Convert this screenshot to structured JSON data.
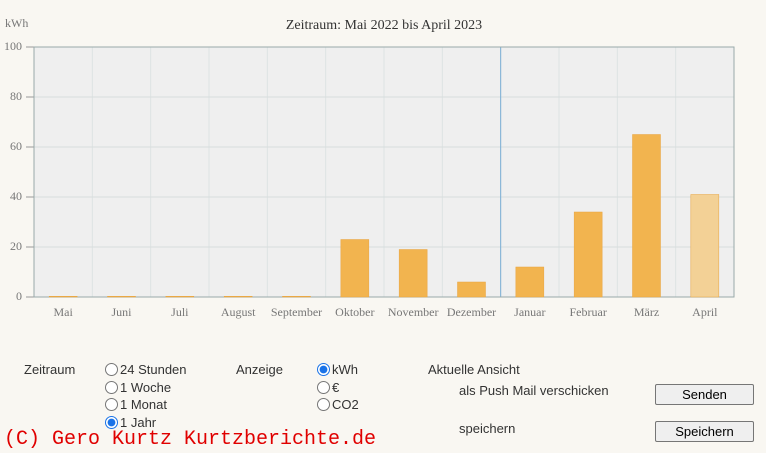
{
  "chart_data": {
    "type": "bar",
    "title": "Zeitraum: Mai 2022 bis April 2023",
    "y_label": "kWh",
    "categories": [
      "Mai",
      "Juni",
      "Juli",
      "August",
      "September",
      "Oktober",
      "November",
      "Dezember",
      "Januar",
      "Februar",
      "März",
      "April"
    ],
    "values": [
      0.3,
      0.3,
      0.3,
      0.3,
      0.3,
      23,
      19,
      6,
      12,
      34,
      65,
      41
    ],
    "colors": [
      "#f2b44f",
      "#f2b44f",
      "#f2b44f",
      "#f2b44f",
      "#f2b44f",
      "#f2b44f",
      "#f2b44f",
      "#f2b44f",
      "#f2b44f",
      "#f2b44f",
      "#f2b44f",
      "#f3d196"
    ],
    "ylim": [
      0,
      100
    ],
    "yticks": [
      0,
      20,
      40,
      60,
      80,
      100
    ],
    "grid": true
  },
  "controls": {
    "zeitraum": {
      "label": "Zeitraum",
      "options": [
        "24 Stunden",
        "1 Woche",
        "1 Monat",
        "1 Jahr"
      ],
      "selected": 3
    },
    "anzeige": {
      "label": "Anzeige",
      "options": [
        "kWh",
        "€",
        "CO2"
      ],
      "selected": 0
    },
    "aktuelle_ansicht": "Aktuelle Ansicht",
    "push_mail": {
      "label": "als Push Mail verschicken",
      "button": "Senden"
    },
    "speichern": {
      "label": "speichern",
      "button": "Speichern"
    }
  },
  "watermark": "(C) Gero Kurtz Kurtzberichte.de"
}
